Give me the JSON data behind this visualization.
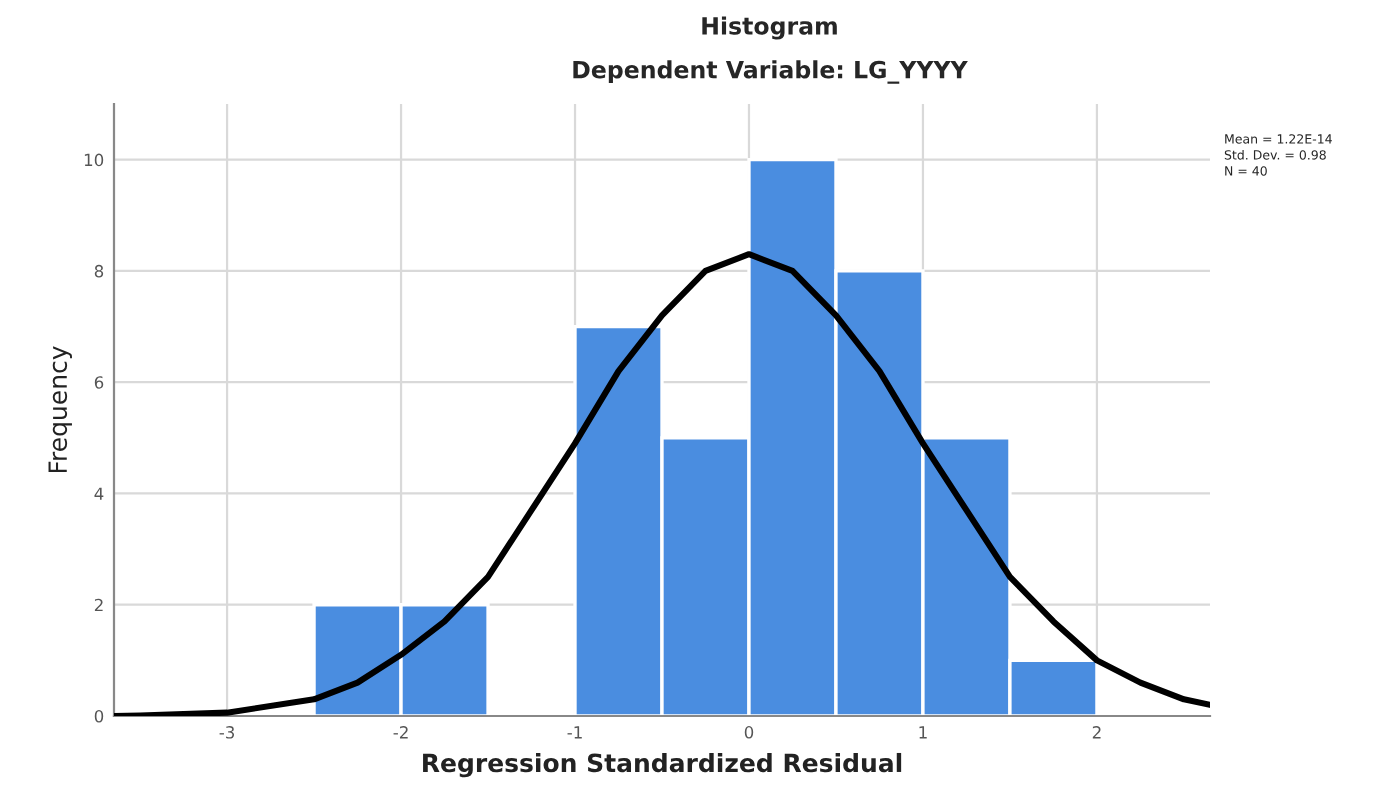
{
  "chart_data": {
    "type": "histogram",
    "title": "Histogram",
    "subtitle": "Dependent Variable: LG_YYYY",
    "xlabel": "Regression Standardized Residual",
    "ylabel": "Frequency",
    "bins": [
      -2.5,
      -2,
      -1.5,
      -1,
      -0.5,
      0,
      0.5,
      1,
      1.5,
      2
    ],
    "values": [
      2,
      2,
      0,
      7,
      5,
      10,
      8,
      5,
      1
    ],
    "color": "#4a8de0",
    "series": [
      {
        "type": "line",
        "color": "#000000",
        "x": [
          -3.65,
          -3.5,
          -3,
          -2.5,
          -2.25,
          -2,
          -1.75,
          -1.5,
          -1.25,
          -1,
          -0.75,
          -0.5,
          -0.25,
          0,
          0.25,
          0.5,
          0.75,
          1,
          1.25,
          1.5,
          1.75,
          2,
          2.25,
          2.5,
          2.65
        ],
        "values": [
          0.0,
          0.01,
          0.06,
          0.3,
          0.6,
          1.1,
          1.7,
          2.5,
          3.7,
          4.9,
          6.2,
          7.2,
          8.0,
          8.3,
          8.0,
          7.2,
          6.2,
          4.9,
          3.7,
          2.5,
          1.7,
          1.0,
          0.6,
          0.3,
          0.2
        ]
      }
    ],
    "xlim": [
      -3.65,
      2.65
    ],
    "ylim": [
      0,
      11
    ],
    "xticks": [
      -3,
      -2,
      -1,
      0,
      1,
      2
    ],
    "yticks": [
      0,
      2,
      4,
      6,
      8,
      10
    ],
    "grid": true,
    "annotations": [
      "Mean = 1.22E-14",
      "Std. Dev. = 0.98",
      "N = 40"
    ]
  }
}
